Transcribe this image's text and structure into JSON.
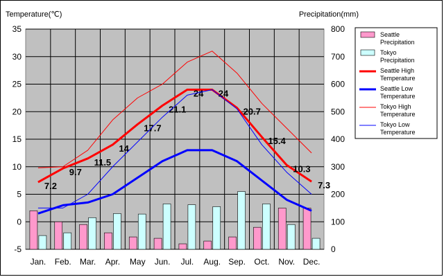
{
  "chart_data": {
    "type": "bar+line",
    "y_left_title": "Temperature(℃)",
    "y_right_title": "Precipitation(mm)",
    "y_left": {
      "min": -5,
      "max": 35,
      "step": 5
    },
    "y_right": {
      "min": 0,
      "max": 800,
      "step": 100
    },
    "categories": [
      "Jan.",
      "Feb.",
      "Mar.",
      "Apr.",
      "May",
      "Jun.",
      "Jul.",
      "Aug.",
      "Sep.",
      "Oct.",
      "Nov.",
      "Dec."
    ],
    "bars": [
      {
        "name": "Seattle Precipitation",
        "legend_lines": [
          "Seattle",
          "Precipitation"
        ],
        "color": "#ff99cc",
        "values": [
          140,
          100,
          90,
          60,
          45,
          40,
          20,
          30,
          45,
          80,
          150,
          150
        ]
      },
      {
        "name": "Tokyo Precipitation",
        "legend_lines": [
          "Tokyo",
          "Precipitation"
        ],
        "color": "#ccffff",
        "values": [
          50,
          60,
          115,
          130,
          128,
          165,
          162,
          155,
          210,
          165,
          90,
          40
        ]
      }
    ],
    "lines": [
      {
        "name": "Seattle High Temperature",
        "legend_lines": [
          "Seattle High",
          "Temperature"
        ],
        "color": "#ff0000",
        "width": 3,
        "values": [
          7.2,
          9.7,
          11.5,
          14,
          17.7,
          21.1,
          24,
          24,
          20.7,
          15.4,
          10.3,
          7.3
        ],
        "labels": [
          "7.2",
          "9.7",
          "11.5",
          "14",
          "17.7",
          "21.1",
          "24",
          "24",
          "20.7",
          "15.4",
          "10.3",
          "7.3"
        ]
      },
      {
        "name": "Seattle Low Temperature",
        "legend_lines": [
          "Seattle Low",
          "Temperature"
        ],
        "color": "#0000ff",
        "width": 3,
        "values": [
          1.5,
          3,
          3.5,
          5,
          8,
          11,
          13,
          13,
          11,
          7.5,
          4,
          2
        ]
      },
      {
        "name": "Tokyo High Temperature",
        "legend_lines": [
          "Tokyo High",
          "Temperature"
        ],
        "color": "#ff0000",
        "width": 1,
        "values": [
          9.8,
          10,
          13,
          18.5,
          22.5,
          25,
          29,
          31,
          27,
          21.5,
          17,
          12.5
        ]
      },
      {
        "name": "Tokyo Low Temperature",
        "legend_lines": [
          "Tokyo Low",
          "Temperature"
        ],
        "color": "#0000ff",
        "width": 1,
        "values": [
          2.5,
          2.5,
          5,
          10,
          14.5,
          19,
          23,
          24,
          20.5,
          14,
          9,
          5
        ]
      }
    ]
  }
}
